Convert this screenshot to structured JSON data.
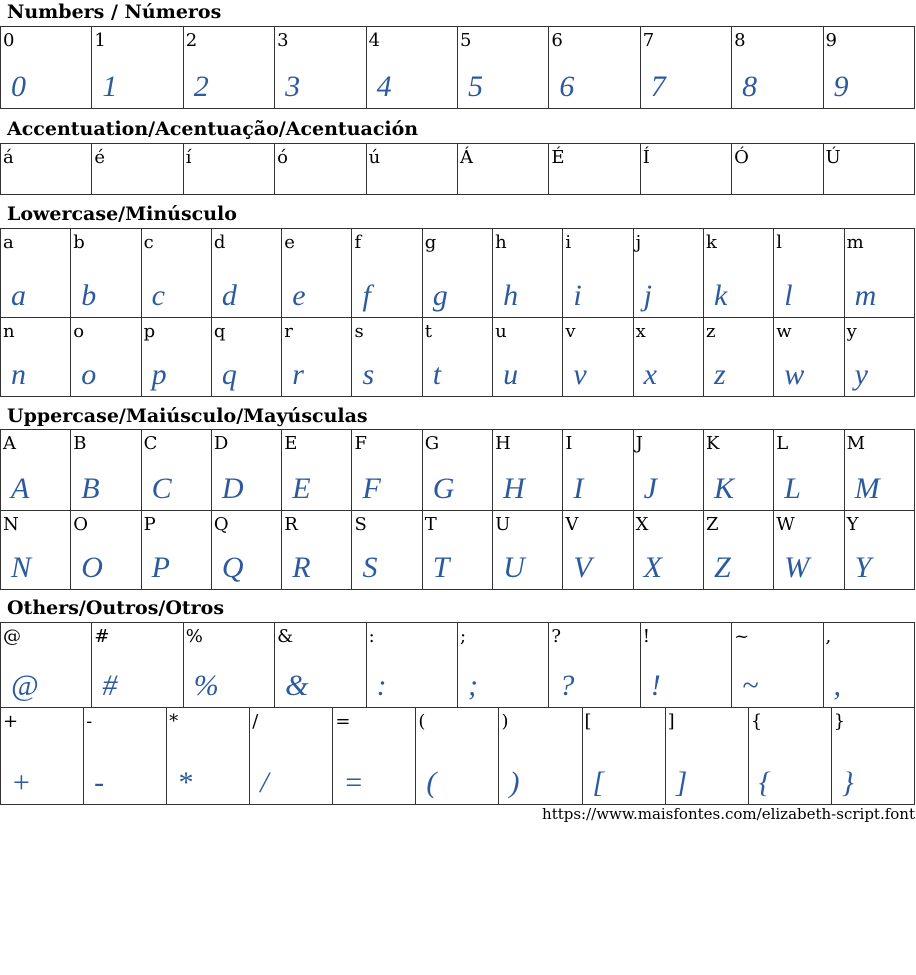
{
  "glyph_color": "#2c5a9e",
  "sections": [
    {
      "title": "Numbers / Números",
      "rows": [
        [
          "0",
          "1",
          "2",
          "3",
          "4",
          "5",
          "6",
          "7",
          "8",
          "9"
        ]
      ]
    },
    {
      "title": "Accentuation/Acentuação/Acentuación",
      "rows": [
        [
          "á",
          "é",
          "í",
          "ó",
          "ú",
          "Á",
          "É",
          "Í",
          "Ó",
          "Ú"
        ]
      ],
      "no_glyph": true
    },
    {
      "title": "Lowercase/Minúsculo",
      "rows": [
        [
          "a",
          "b",
          "c",
          "d",
          "e",
          "f",
          "g",
          "h",
          "i",
          "j",
          "k",
          "l",
          "m"
        ],
        [
          "n",
          "o",
          "p",
          "q",
          "r",
          "s",
          "t",
          "u",
          "v",
          "x",
          "z",
          "w",
          "y"
        ]
      ]
    },
    {
      "title": "Uppercase/Maiúsculo/Mayúsculas",
      "rows": [
        [
          "A",
          "B",
          "C",
          "D",
          "E",
          "F",
          "G",
          "H",
          "I",
          "J",
          "K",
          "L",
          "M"
        ],
        [
          "N",
          "O",
          "P",
          "Q",
          "R",
          "S",
          "T",
          "U",
          "V",
          "X",
          "Z",
          "W",
          "Y"
        ]
      ]
    },
    {
      "title": "Others/Outros/Otros",
      "rows": [
        [
          "@",
          "#",
          "%",
          "&",
          ":",
          ";",
          "?",
          "!",
          "~",
          ","
        ],
        [
          "+",
          "-",
          "*",
          "/",
          "=",
          "(",
          ")",
          "[",
          "]",
          "{",
          "}"
        ]
      ]
    }
  ],
  "footer": "https://www.maisfontes.com/elizabeth-script.font"
}
